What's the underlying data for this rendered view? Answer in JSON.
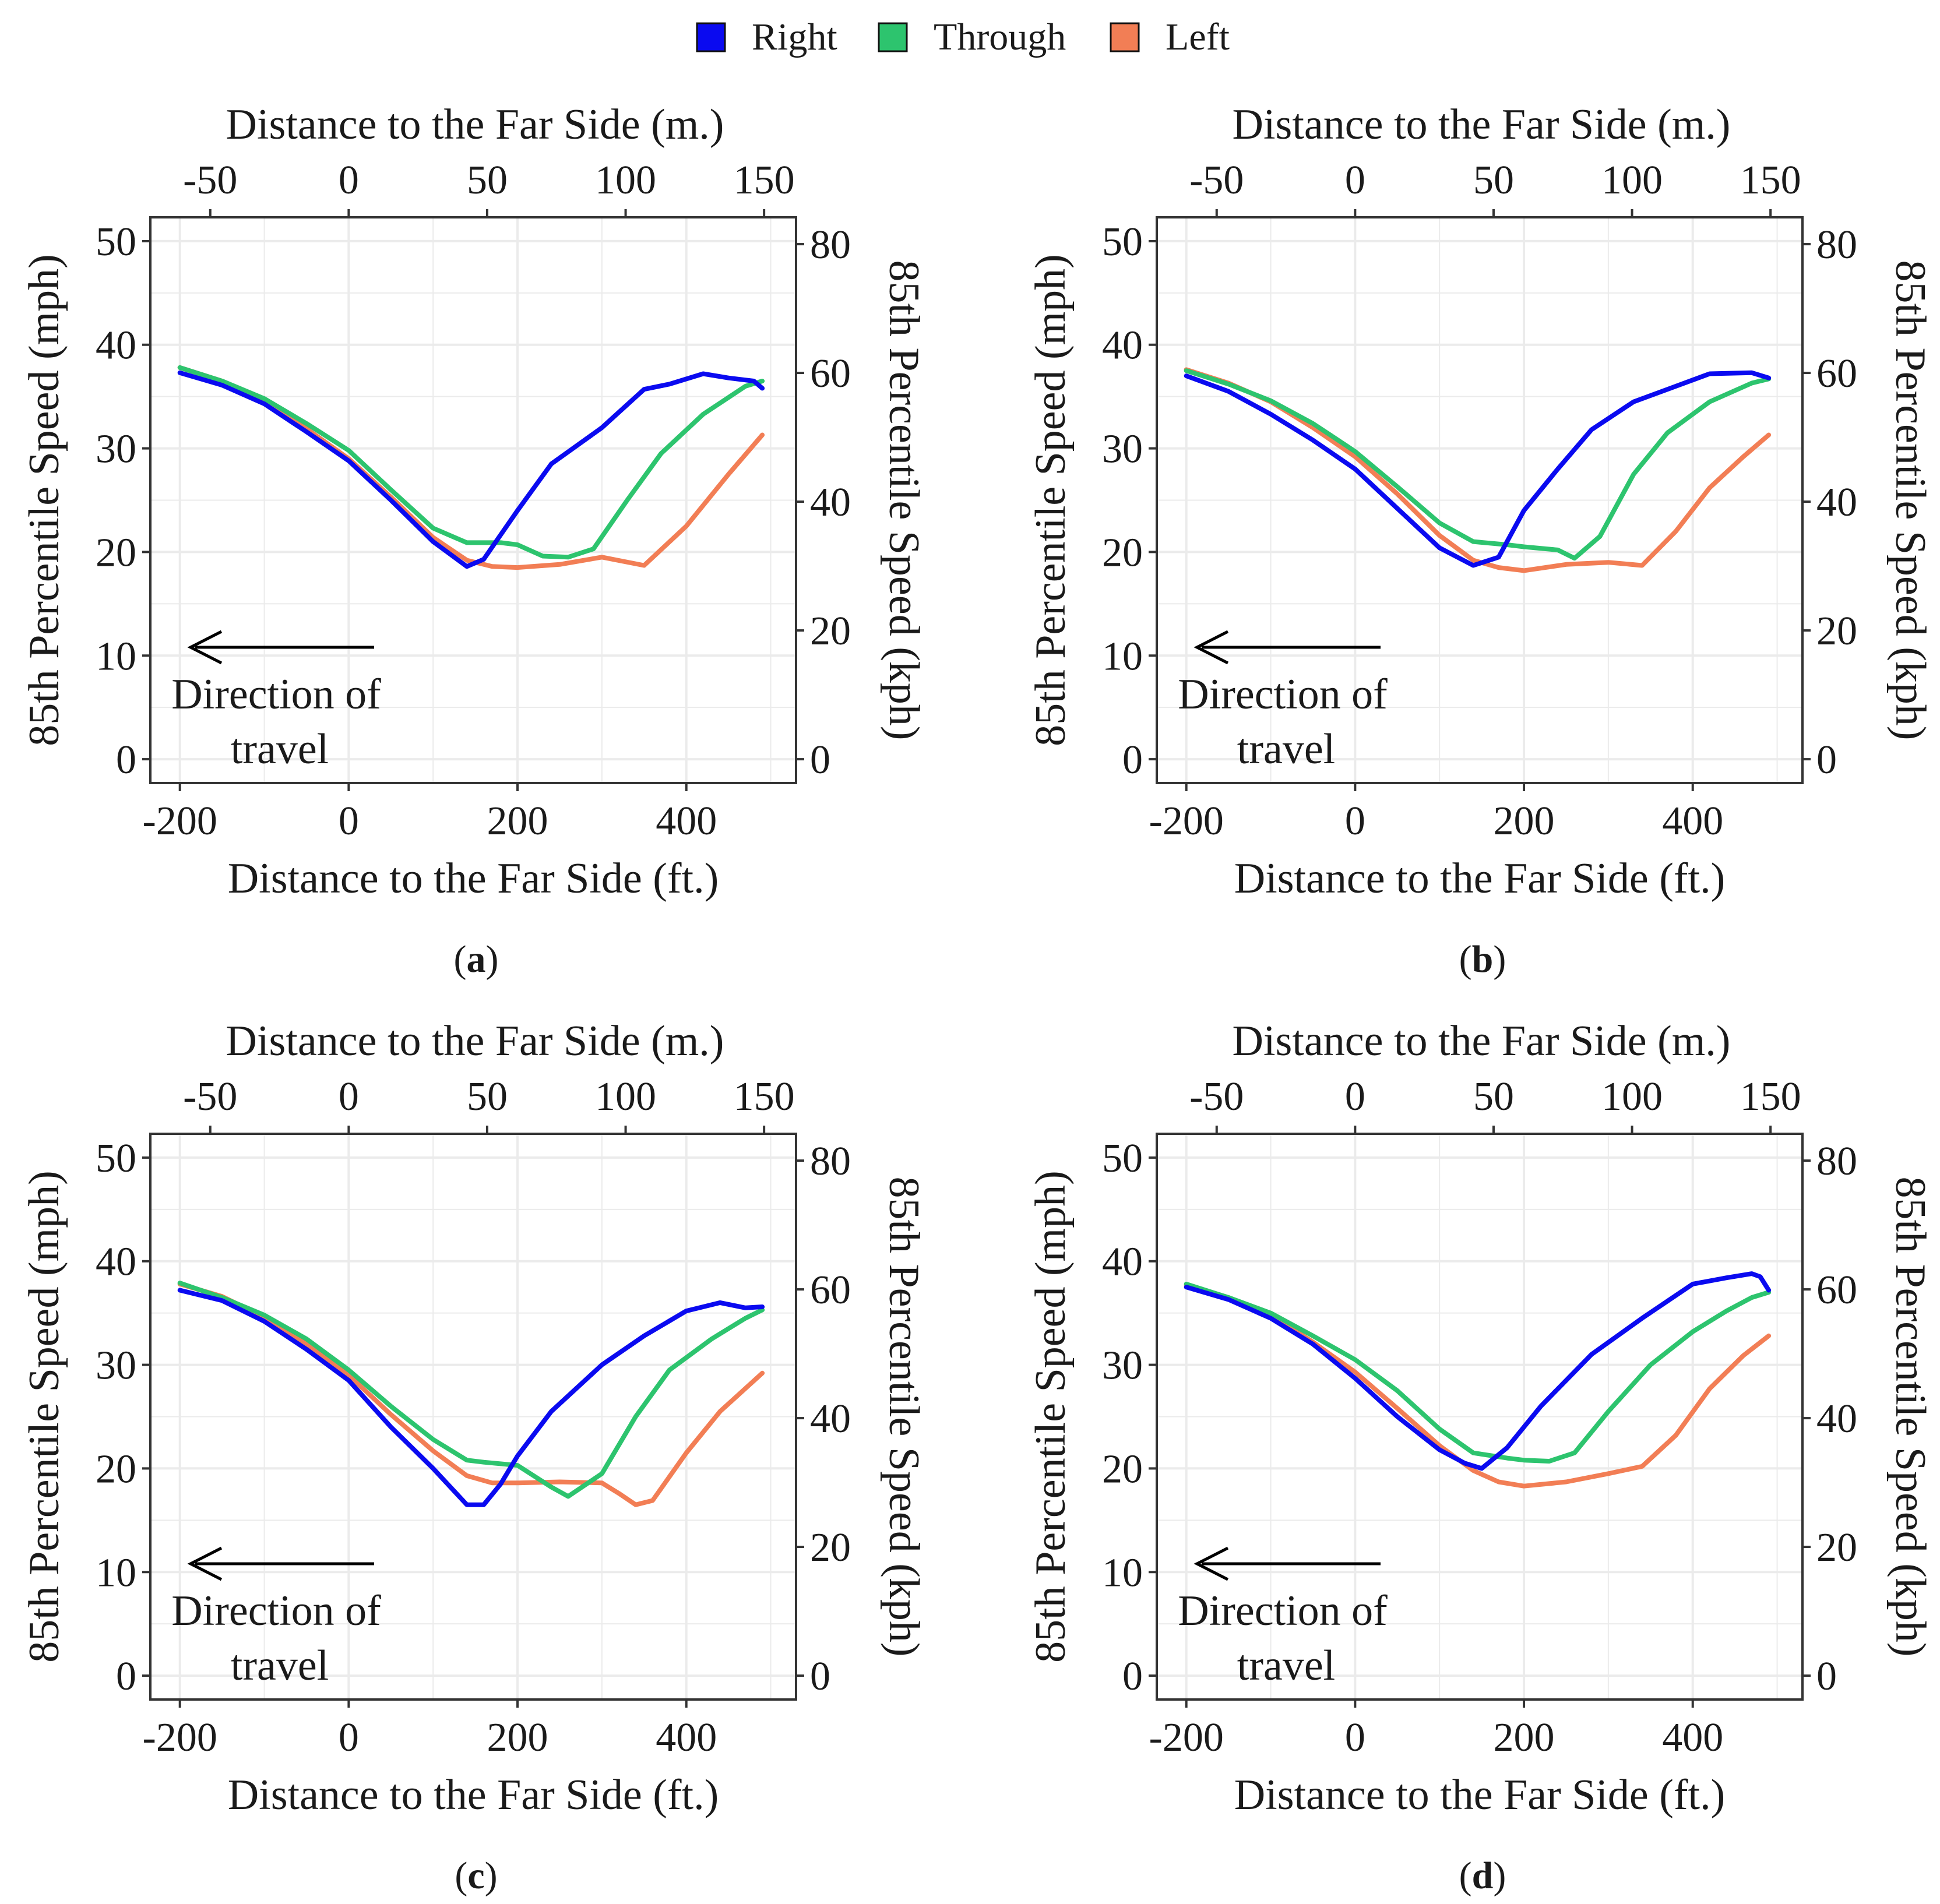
{
  "legend": {
    "items": [
      {
        "label": "Right",
        "color": "#0A0AF0"
      },
      {
        "label": "Through",
        "color": "#2DC46E"
      },
      {
        "label": "Left",
        "color": "#F27E55"
      }
    ]
  },
  "axes_text": {
    "x_bottom_title": "Distance to the Far Side (ft.)",
    "x_top_title": "Distance to the Far Side (m.)",
    "y_left_title": "85th Percentile Speed (mph)",
    "y_right_title": "85th Percentile Speed (kph)",
    "x_bottom_ticks": [
      "-200",
      "0",
      "200",
      "400"
    ],
    "x_top_ticks": [
      "-50",
      "0",
      "50",
      "100",
      "150"
    ],
    "y_left_ticks": [
      "0",
      "10",
      "20",
      "30",
      "40",
      "50"
    ],
    "y_right_ticks": [
      "0",
      "20",
      "40",
      "60",
      "80"
    ]
  },
  "annotation": {
    "line1": "Direction of",
    "line2": "travel"
  },
  "chart_data": [
    {
      "type": "line",
      "panel": "a",
      "caption_open": "(",
      "caption_letter": "a",
      "caption_close": ")",
      "xlabel": "Distance to the Far Side (ft.)",
      "ylabel": "85th Percentile Speed (mph)",
      "secondary_xlabel": "Distance to the Far Side (m.)",
      "secondary_ylabel": "85th Percentile Speed (kph)",
      "xlim": [
        -235,
        530
      ],
      "ylim": [
        -2.3,
        52.3
      ],
      "series": [
        {
          "name": "Right",
          "x": [
            -200,
            -150,
            -100,
            -50,
            0,
            50,
            100,
            140,
            160,
            200,
            240,
            300,
            350,
            380,
            420,
            450,
            480,
            490
          ],
          "y": [
            37.3,
            36.1,
            34.3,
            31.6,
            28.8,
            25,
            21,
            18.6,
            19.3,
            24,
            28.5,
            32,
            35.7,
            36.2,
            37.2,
            36.8,
            36.5,
            35.8
          ]
        },
        {
          "name": "Through",
          "x": [
            -200,
            -150,
            -100,
            -50,
            0,
            50,
            100,
            140,
            180,
            200,
            230,
            260,
            290,
            330,
            370,
            420,
            470,
            490
          ],
          "y": [
            37.8,
            36.5,
            34.8,
            32.4,
            29.8,
            26,
            22.3,
            20.9,
            20.9,
            20.7,
            19.6,
            19.5,
            20.3,
            25,
            29.5,
            33.3,
            36,
            36.5
          ]
        },
        {
          "name": "Left",
          "x": [
            -200,
            -150,
            -100,
            -50,
            0,
            50,
            100,
            140,
            170,
            200,
            250,
            300,
            350,
            400,
            450,
            490
          ],
          "y": [
            37.8,
            36.5,
            34.5,
            31.9,
            29,
            25.3,
            21.4,
            19.2,
            18.6,
            18.5,
            18.8,
            19.5,
            18.7,
            22.5,
            27.5,
            31.3
          ]
        }
      ]
    },
    {
      "type": "line",
      "panel": "b",
      "caption_open": "(",
      "caption_letter": "b",
      "caption_close": ")",
      "xlabel": "Distance to the Far Side (ft.)",
      "ylabel": "85th Percentile Speed (mph)",
      "secondary_xlabel": "Distance to the Far Side (m.)",
      "secondary_ylabel": "85th Percentile Speed (kph)",
      "xlim": [
        -235,
        530
      ],
      "ylim": [
        -2.3,
        52.3
      ],
      "series": [
        {
          "name": "Right",
          "x": [
            -200,
            -150,
            -100,
            -50,
            0,
            50,
            100,
            140,
            170,
            200,
            240,
            280,
            330,
            370,
            420,
            470,
            490
          ],
          "y": [
            37,
            35.5,
            33.3,
            30.8,
            28,
            24.2,
            20.4,
            18.7,
            19.5,
            24,
            28,
            31.8,
            34.5,
            35.7,
            37.2,
            37.3,
            36.8
          ]
        },
        {
          "name": "Through",
          "x": [
            -200,
            -150,
            -100,
            -50,
            0,
            50,
            100,
            140,
            180,
            200,
            240,
            260,
            290,
            330,
            370,
            420,
            470,
            490
          ],
          "y": [
            37.5,
            36.2,
            34.6,
            32.4,
            29.7,
            26.3,
            22.8,
            21,
            20.7,
            20.5,
            20.2,
            19.4,
            21.5,
            27.5,
            31.5,
            34.5,
            36.3,
            36.7
          ]
        },
        {
          "name": "Left",
          "x": [
            -200,
            -150,
            -100,
            -50,
            0,
            50,
            100,
            140,
            170,
            200,
            250,
            300,
            340,
            380,
            420,
            460,
            490
          ],
          "y": [
            37.6,
            36.3,
            34.5,
            32,
            29.2,
            25.6,
            21.6,
            19.2,
            18.5,
            18.2,
            18.8,
            19,
            18.7,
            22,
            26.2,
            29.2,
            31.3
          ]
        }
      ]
    },
    {
      "type": "line",
      "panel": "c",
      "caption_open": "(",
      "caption_letter": "c",
      "caption_close": ")",
      "xlabel": "Distance to the Far Side (ft.)",
      "ylabel": "85th Percentile Speed (mph)",
      "secondary_xlabel": "Distance to the Far Side (m.)",
      "secondary_ylabel": "85th Percentile Speed (kph)",
      "xlim": [
        -235,
        530
      ],
      "ylim": [
        -2.3,
        52.3
      ],
      "series": [
        {
          "name": "Right",
          "x": [
            -200,
            -150,
            -100,
            -50,
            0,
            50,
            100,
            140,
            160,
            180,
            200,
            240,
            300,
            350,
            400,
            440,
            470,
            490
          ],
          "y": [
            37.2,
            36.2,
            34.2,
            31.5,
            28.5,
            24,
            20,
            16.5,
            16.5,
            18.5,
            21.2,
            25.5,
            30,
            32.8,
            35.2,
            36,
            35.5,
            35.6
          ]
        },
        {
          "name": "Through",
          "x": [
            -200,
            -150,
            -100,
            -50,
            0,
            50,
            100,
            140,
            160,
            200,
            240,
            260,
            300,
            340,
            380,
            430,
            470,
            490
          ],
          "y": [
            37.9,
            36.5,
            34.8,
            32.5,
            29.5,
            26,
            22.8,
            20.8,
            20.6,
            20.3,
            18.2,
            17.3,
            19.5,
            25,
            29.5,
            32.5,
            34.5,
            35.3
          ]
        },
        {
          "name": "Left",
          "x": [
            -200,
            -150,
            -100,
            -50,
            0,
            50,
            100,
            140,
            170,
            200,
            250,
            300,
            320,
            340,
            360,
            400,
            440,
            490
          ],
          "y": [
            37.8,
            36.6,
            34.6,
            32,
            29,
            25.2,
            21.7,
            19.3,
            18.6,
            18.6,
            18.7,
            18.6,
            17.6,
            16.5,
            16.9,
            21.5,
            25.5,
            29.2
          ]
        }
      ]
    },
    {
      "type": "line",
      "panel": "d",
      "caption_open": "(",
      "caption_letter": "d",
      "caption_close": ")",
      "xlabel": "Distance to the Far Side (ft.)",
      "ylabel": "85th Percentile Speed (mph)",
      "secondary_xlabel": "Distance to the Far Side (m.)",
      "secondary_ylabel": "85th Percentile Speed (kph)",
      "xlim": [
        -235,
        530
      ],
      "ylim": [
        -2.3,
        52.3
      ],
      "series": [
        {
          "name": "Right",
          "x": [
            -200,
            -150,
            -100,
            -50,
            0,
            50,
            100,
            130,
            150,
            180,
            220,
            280,
            340,
            400,
            440,
            470,
            480,
            490
          ],
          "y": [
            37.5,
            36.3,
            34.5,
            32,
            28.7,
            25,
            21.8,
            20.5,
            20,
            22,
            26,
            31,
            34.5,
            37.8,
            38.4,
            38.8,
            38.5,
            37.2
          ]
        },
        {
          "name": "Through",
          "x": [
            -200,
            -150,
            -100,
            -50,
            0,
            50,
            100,
            140,
            180,
            200,
            230,
            260,
            300,
            350,
            400,
            440,
            470,
            490
          ],
          "y": [
            37.8,
            36.5,
            35,
            32.8,
            30.5,
            27.5,
            23.8,
            21.5,
            21,
            20.8,
            20.7,
            21.5,
            25.5,
            30,
            33.2,
            35.2,
            36.5,
            37
          ]
        },
        {
          "name": "Left",
          "x": [
            -200,
            -150,
            -100,
            -50,
            0,
            50,
            100,
            140,
            170,
            200,
            250,
            300,
            340,
            380,
            420,
            460,
            490
          ],
          "y": [
            37.7,
            36.5,
            34.8,
            32.2,
            29.3,
            25.8,
            22.2,
            19.8,
            18.7,
            18.3,
            18.7,
            19.5,
            20.2,
            23.2,
            27.7,
            30.9,
            32.8
          ]
        }
      ]
    }
  ]
}
